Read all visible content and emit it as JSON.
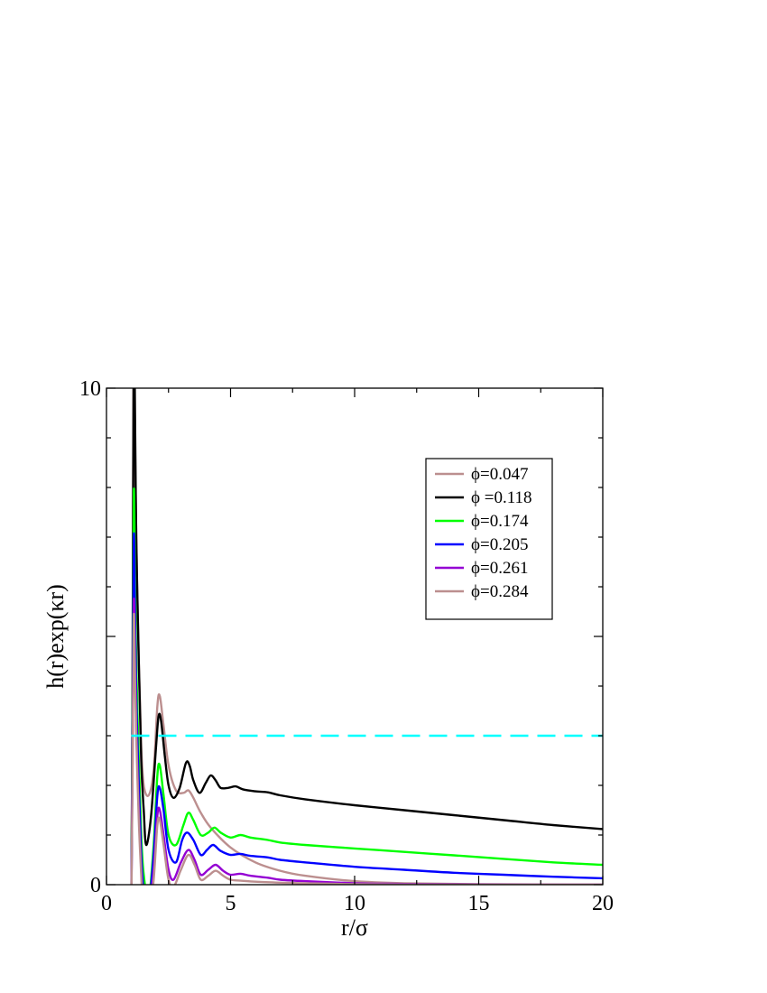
{
  "chart_data": {
    "type": "line",
    "title": "",
    "xlabel": "r/σ",
    "ylabel": "h(r)exp(κr)",
    "xlim": [
      0,
      20
    ],
    "ylim": [
      0,
      10
    ],
    "xticks": [
      0,
      5,
      10,
      15,
      20
    ],
    "xtick_labels": [
      "0",
      "5",
      "10",
      "15",
      "20"
    ],
    "yticks": [
      0,
      10
    ],
    "ytick_labels": [
      "0",
      "10"
    ],
    "grid": false,
    "legend_position": "top-right",
    "series": [
      {
        "name": "ϕ=0.047",
        "color": "#bc8f8f",
        "x": [
          1.0,
          1.05,
          1.1,
          1.15,
          1.2,
          1.3,
          1.4,
          1.5,
          1.7,
          1.9,
          2.05,
          2.15,
          2.3,
          2.5,
          2.8,
          3.1,
          3.3,
          3.5,
          3.8,
          4.2,
          5.0,
          6.0,
          7.0,
          8.0,
          10.0,
          12.0,
          15.0,
          20.0
        ],
        "y": [
          -0.5,
          4.0,
          12.0,
          9.0,
          7.0,
          4.5,
          2.8,
          2.0,
          1.8,
          2.3,
          3.6,
          3.8,
          3.2,
          2.4,
          1.9,
          1.85,
          1.9,
          1.75,
          1.45,
          1.15,
          0.75,
          0.45,
          0.28,
          0.18,
          0.07,
          0.03,
          0.01,
          0.0
        ]
      },
      {
        "name": "ϕ =0.118",
        "color": "#000000",
        "x": [
          1.0,
          1.05,
          1.1,
          1.15,
          1.2,
          1.3,
          1.4,
          1.5,
          1.6,
          1.8,
          2.0,
          2.1,
          2.2,
          2.35,
          2.5,
          2.7,
          2.95,
          3.2,
          3.35,
          3.5,
          3.75,
          4.0,
          4.2,
          4.4,
          4.6,
          4.9,
          5.2,
          5.5,
          6.0,
          6.5,
          7.0,
          8.0,
          10.0,
          12.0,
          14.0,
          16.0,
          18.0,
          20.0
        ],
        "y": [
          -0.5,
          4.0,
          11.5,
          9.5,
          7.0,
          4.5,
          2.5,
          1.5,
          0.8,
          1.4,
          2.8,
          3.4,
          3.3,
          2.6,
          2.0,
          1.75,
          1.95,
          2.45,
          2.4,
          2.1,
          1.85,
          2.05,
          2.2,
          2.1,
          1.95,
          1.95,
          1.98,
          1.92,
          1.88,
          1.86,
          1.8,
          1.72,
          1.6,
          1.5,
          1.4,
          1.3,
          1.2,
          1.12
        ]
      },
      {
        "name": "ϕ=0.174",
        "color": "#00ff00",
        "x": [
          1.0,
          1.05,
          1.1,
          1.15,
          1.2,
          1.3,
          1.4,
          1.5,
          1.7,
          1.9,
          2.05,
          2.15,
          2.3,
          2.5,
          2.8,
          3.1,
          3.3,
          3.5,
          3.8,
          4.1,
          4.35,
          4.6,
          5.0,
          5.4,
          5.8,
          6.5,
          7.0,
          8.0,
          10.0,
          12.0,
          14.0,
          16.0,
          18.0,
          20.0
        ],
        "y": [
          -0.5,
          3.5,
          7.9,
          6.2,
          4.5,
          2.5,
          1.0,
          0.2,
          -0.3,
          0.8,
          2.2,
          2.4,
          1.8,
          1.0,
          0.8,
          1.2,
          1.45,
          1.3,
          1.0,
          1.05,
          1.15,
          1.05,
          0.95,
          1.0,
          0.95,
          0.9,
          0.85,
          0.8,
          0.73,
          0.66,
          0.59,
          0.52,
          0.45,
          0.4
        ]
      },
      {
        "name": "ϕ=0.205",
        "color": "#0000ff",
        "x": [
          1.0,
          1.05,
          1.1,
          1.15,
          1.2,
          1.3,
          1.4,
          1.5,
          1.6,
          1.7,
          1.9,
          2.05,
          2.15,
          2.3,
          2.5,
          2.8,
          3.05,
          3.25,
          3.5,
          3.8,
          4.05,
          4.3,
          4.6,
          5.0,
          5.4,
          5.8,
          6.5,
          7.0,
          8.0,
          10.0,
          12.0,
          14.0,
          16.0,
          18.0,
          20.0
        ],
        "y": [
          -0.5,
          3.0,
          7.0,
          5.5,
          3.8,
          2.0,
          0.6,
          -0.2,
          -0.7,
          -0.5,
          0.6,
          1.8,
          1.95,
          1.5,
          0.7,
          0.45,
          0.9,
          1.05,
          0.9,
          0.6,
          0.7,
          0.8,
          0.68,
          0.6,
          0.62,
          0.58,
          0.55,
          0.5,
          0.45,
          0.36,
          0.3,
          0.24,
          0.2,
          0.16,
          0.13
        ]
      },
      {
        "name": "ϕ=0.261",
        "color": "#9400d3",
        "x": [
          1.0,
          1.05,
          1.1,
          1.15,
          1.2,
          1.3,
          1.4,
          1.5,
          1.7,
          1.9,
          2.05,
          2.15,
          2.3,
          2.5,
          2.7,
          3.0,
          3.3,
          3.55,
          3.8,
          4.1,
          4.4,
          4.7,
          5.0,
          5.4,
          5.8,
          6.5,
          7.0,
          8.0,
          10.0,
          12.0,
          15.0,
          20.0
        ],
        "y": [
          -0.5,
          2.5,
          5.7,
          4.5,
          3.2,
          1.5,
          0.3,
          -0.5,
          -0.6,
          0.3,
          1.4,
          1.5,
          1.0,
          0.3,
          0.1,
          0.45,
          0.7,
          0.5,
          0.2,
          0.3,
          0.4,
          0.28,
          0.2,
          0.22,
          0.18,
          0.14,
          0.1,
          0.07,
          0.03,
          0.015,
          0.005,
          0.0
        ]
      },
      {
        "name": "ϕ=0.284",
        "color": "#bc8f8f",
        "x": [
          1.0,
          1.05,
          1.1,
          1.15,
          1.2,
          1.3,
          1.4,
          1.5,
          1.7,
          1.9,
          2.05,
          2.15,
          2.3,
          2.5,
          2.7,
          3.0,
          3.3,
          3.55,
          3.8,
          4.1,
          4.4,
          4.7,
          5.0,
          5.4,
          6.0,
          7.0,
          8.0,
          10.0,
          12.0,
          15.0,
          20.0
        ],
        "y": [
          -0.5,
          2.3,
          5.4,
          4.2,
          3.0,
          1.3,
          0.2,
          -0.6,
          -0.7,
          0.1,
          1.2,
          1.3,
          0.8,
          0.1,
          -0.05,
          0.3,
          0.6,
          0.4,
          0.1,
          0.18,
          0.28,
          0.18,
          0.1,
          0.08,
          0.06,
          0.04,
          0.03,
          0.01,
          0.005,
          0.0,
          0.0
        ]
      }
    ],
    "reference_line": {
      "y": 3.0,
      "x_range": [
        1.0,
        20.0
      ],
      "color": "#00ffff",
      "style": "dashed"
    }
  }
}
